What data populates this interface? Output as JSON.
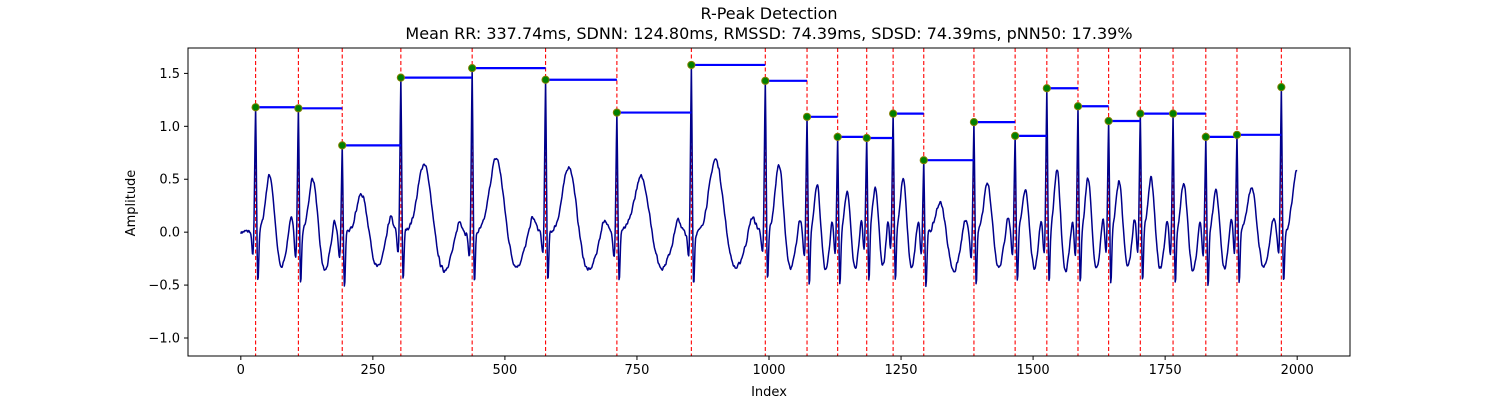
{
  "chart_data": {
    "type": "line",
    "title": "R-Peak Detection",
    "subtitle": "Mean RR: 337.74ms, SDNN: 124.80ms, RMSSD: 74.39ms, SDSD: 74.39ms, pNN50: 17.39%",
    "xlabel": "Index",
    "ylabel": "Amplitude",
    "xlim": [
      -100,
      2100
    ],
    "ylim": [
      -1.17,
      1.74
    ],
    "xticks": [
      0,
      250,
      500,
      750,
      1000,
      1250,
      1500,
      1750,
      2000
    ],
    "xtick_labels": [
      "0",
      "250",
      "500",
      "750",
      "1000",
      "1250",
      "1500",
      "1750",
      "2000"
    ],
    "yticks": [
      -1.0,
      -0.5,
      0.0,
      0.5,
      1.0,
      1.5
    ],
    "ytick_labels": [
      "−1.0",
      "−0.5",
      "0.0",
      "0.5",
      "1.0",
      "1.5"
    ],
    "grid": false,
    "colors": {
      "signal": "#00008b",
      "peak_lines": "#ff0000",
      "rr_segments": "#0000ff",
      "peak_marker": "#008000",
      "peak_marker_edge": "#808000"
    },
    "r_peaks": {
      "x": [
        28,
        109,
        192,
        303,
        438,
        577,
        712,
        853,
        993,
        1072,
        1130,
        1185,
        1235,
        1293,
        1388,
        1466,
        1526,
        1585,
        1643,
        1703,
        1765,
        1827,
        1886,
        1970
      ],
      "y": [
        1.18,
        1.17,
        0.82,
        1.46,
        1.55,
        1.44,
        1.13,
        1.58,
        1.43,
        1.09,
        0.9,
        0.89,
        1.12,
        0.68,
        1.04,
        0.91,
        1.36,
        1.19,
        1.05,
        1.12,
        1.12,
        0.9,
        0.92,
        1.37
      ]
    },
    "signal_x_range": [
      0,
      2000
    ]
  }
}
